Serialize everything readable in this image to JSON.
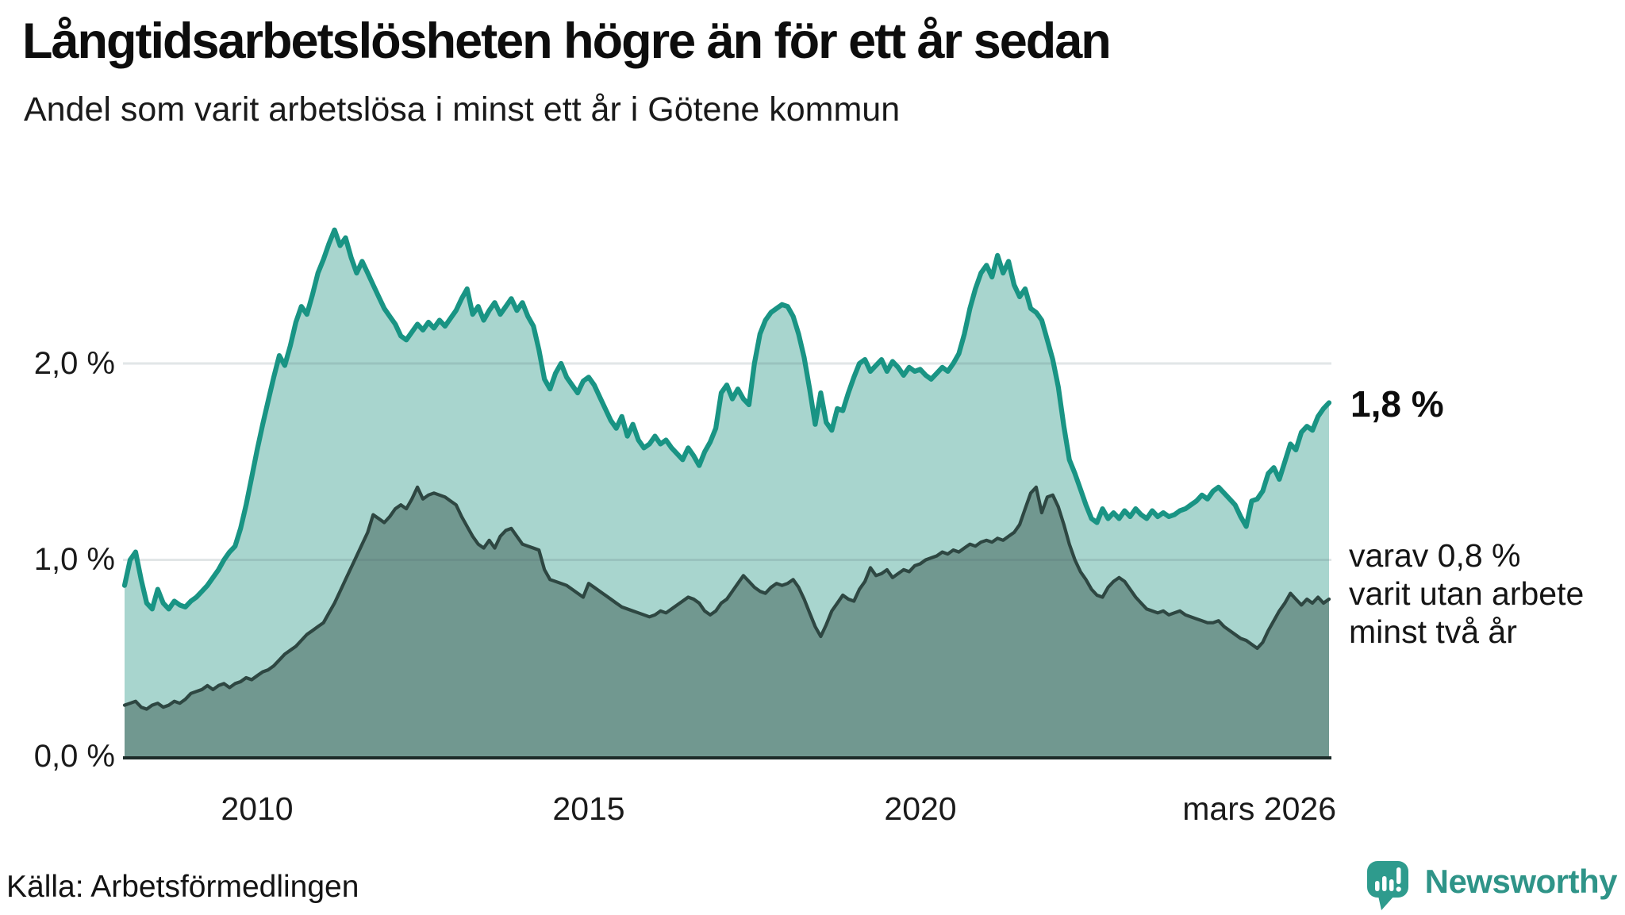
{
  "header": {
    "title": "Långtidsarbetslösheten högre än för ett år sedan",
    "subtitle": "Andel som varit arbetslösa i minst ett år i Götene kommun"
  },
  "chart_data": {
    "type": "area",
    "title": "Långtidsarbetslösheten högre än för ett år sedan",
    "subtitle": "Andel som varit arbetslösa i minst ett år i Götene kommun",
    "x_start": "2008-01",
    "x_end": "2026-03",
    "x_frequency": "monthly",
    "ylim": [
      0,
      2.8
    ],
    "grid": "horizontal",
    "legend_position": "none",
    "y_ticks": [
      {
        "label": "0,0 %",
        "value": 0
      },
      {
        "label": "1,0 %",
        "value": 1
      },
      {
        "label": "2,0 %",
        "value": 2
      }
    ],
    "x_ticks": [
      {
        "label": "2010",
        "year": 2010
      },
      {
        "label": "2015",
        "year": 2015
      },
      {
        "label": "2020",
        "year": 2020
      },
      {
        "label": "mars 2026",
        "year": 2026.17
      }
    ],
    "series": [
      {
        "name": "Andel arbetslösa minst ett år",
        "line_color": "#199484",
        "fill_color": "#a8d5ce",
        "end_value_label": "1,8 %",
        "values": [
          0.87,
          1.0,
          1.04,
          0.9,
          0.78,
          0.75,
          0.85,
          0.78,
          0.75,
          0.79,
          0.77,
          0.76,
          0.79,
          0.81,
          0.84,
          0.87,
          0.91,
          0.95,
          1.0,
          1.04,
          1.07,
          1.16,
          1.28,
          1.42,
          1.56,
          1.69,
          1.81,
          1.93,
          2.04,
          1.99,
          2.09,
          2.21,
          2.29,
          2.25,
          2.35,
          2.46,
          2.53,
          2.61,
          2.68,
          2.6,
          2.64,
          2.54,
          2.46,
          2.52,
          2.46,
          2.4,
          2.34,
          2.28,
          2.24,
          2.2,
          2.14,
          2.12,
          2.16,
          2.2,
          2.17,
          2.21,
          2.18,
          2.22,
          2.19,
          2.23,
          2.27,
          2.33,
          2.38,
          2.25,
          2.29,
          2.22,
          2.27,
          2.31,
          2.25,
          2.29,
          2.33,
          2.27,
          2.31,
          2.24,
          2.19,
          2.07,
          1.92,
          1.87,
          1.95,
          2.0,
          1.93,
          1.89,
          1.85,
          1.91,
          1.93,
          1.89,
          1.83,
          1.77,
          1.71,
          1.67,
          1.73,
          1.63,
          1.69,
          1.61,
          1.57,
          1.59,
          1.63,
          1.59,
          1.61,
          1.57,
          1.54,
          1.51,
          1.57,
          1.53,
          1.48,
          1.55,
          1.6,
          1.67,
          1.85,
          1.89,
          1.82,
          1.87,
          1.82,
          1.79,
          2.0,
          2.15,
          2.22,
          2.26,
          2.28,
          2.3,
          2.29,
          2.24,
          2.15,
          2.03,
          1.87,
          1.69,
          1.85,
          1.7,
          1.66,
          1.77,
          1.76,
          1.85,
          1.93,
          2.0,
          2.02,
          1.96,
          1.99,
          2.02,
          1.96,
          2.01,
          1.98,
          1.94,
          1.98,
          1.96,
          1.97,
          1.94,
          1.92,
          1.95,
          1.98,
          1.96,
          2.0,
          2.05,
          2.15,
          2.28,
          2.38,
          2.46,
          2.5,
          2.44,
          2.55,
          2.46,
          2.52,
          2.4,
          2.34,
          2.38,
          2.28,
          2.26,
          2.22,
          2.12,
          2.02,
          1.88,
          1.68,
          1.51,
          1.44,
          1.36,
          1.28,
          1.21,
          1.19,
          1.26,
          1.21,
          1.24,
          1.21,
          1.25,
          1.22,
          1.26,
          1.23,
          1.21,
          1.25,
          1.22,
          1.24,
          1.22,
          1.23,
          1.25,
          1.26,
          1.28,
          1.3,
          1.33,
          1.31,
          1.35,
          1.37,
          1.34,
          1.31,
          1.28,
          1.22,
          1.17,
          1.3,
          1.31,
          1.35,
          1.44,
          1.47,
          1.41,
          1.5,
          1.59,
          1.56,
          1.65,
          1.68,
          1.66,
          1.73,
          1.77,
          1.8
        ]
      },
      {
        "name": "Andel arbetslösa minst två år",
        "line_color": "#2e4742",
        "fill_color": "#719890",
        "end_value_label": "varav 0,8 % varit utan arbete minst två år",
        "values": [
          0.26,
          0.27,
          0.28,
          0.25,
          0.24,
          0.26,
          0.27,
          0.25,
          0.26,
          0.28,
          0.27,
          0.29,
          0.32,
          0.33,
          0.34,
          0.36,
          0.34,
          0.36,
          0.37,
          0.35,
          0.37,
          0.38,
          0.4,
          0.39,
          0.41,
          0.43,
          0.44,
          0.46,
          0.49,
          0.52,
          0.54,
          0.56,
          0.59,
          0.62,
          0.64,
          0.66,
          0.68,
          0.73,
          0.78,
          0.84,
          0.9,
          0.96,
          1.02,
          1.08,
          1.14,
          1.23,
          1.21,
          1.19,
          1.22,
          1.26,
          1.28,
          1.26,
          1.31,
          1.37,
          1.31,
          1.33,
          1.34,
          1.33,
          1.32,
          1.3,
          1.28,
          1.22,
          1.17,
          1.12,
          1.08,
          1.06,
          1.1,
          1.06,
          1.12,
          1.15,
          1.16,
          1.12,
          1.08,
          1.07,
          1.06,
          1.05,
          0.95,
          0.9,
          0.89,
          0.88,
          0.87,
          0.85,
          0.83,
          0.81,
          0.88,
          0.86,
          0.84,
          0.82,
          0.8,
          0.78,
          0.76,
          0.75,
          0.74,
          0.73,
          0.72,
          0.71,
          0.72,
          0.74,
          0.73,
          0.75,
          0.77,
          0.79,
          0.81,
          0.8,
          0.78,
          0.74,
          0.72,
          0.74,
          0.78,
          0.8,
          0.84,
          0.88,
          0.92,
          0.89,
          0.86,
          0.84,
          0.83,
          0.86,
          0.88,
          0.87,
          0.88,
          0.9,
          0.86,
          0.8,
          0.73,
          0.66,
          0.61,
          0.67,
          0.74,
          0.78,
          0.82,
          0.8,
          0.79,
          0.85,
          0.89,
          0.96,
          0.92,
          0.93,
          0.95,
          0.91,
          0.93,
          0.95,
          0.94,
          0.97,
          0.98,
          1.0,
          1.01,
          1.02,
          1.04,
          1.03,
          1.05,
          1.04,
          1.06,
          1.08,
          1.07,
          1.09,
          1.1,
          1.09,
          1.11,
          1.1,
          1.12,
          1.14,
          1.18,
          1.26,
          1.34,
          1.37,
          1.24,
          1.32,
          1.33,
          1.27,
          1.18,
          1.08,
          1.0,
          0.94,
          0.9,
          0.85,
          0.82,
          0.81,
          0.86,
          0.89,
          0.91,
          0.89,
          0.85,
          0.81,
          0.78,
          0.75,
          0.74,
          0.73,
          0.74,
          0.72,
          0.73,
          0.74,
          0.72,
          0.71,
          0.7,
          0.69,
          0.68,
          0.68,
          0.69,
          0.66,
          0.64,
          0.62,
          0.6,
          0.59,
          0.57,
          0.55,
          0.58,
          0.64,
          0.69,
          0.74,
          0.78,
          0.83,
          0.8,
          0.77,
          0.8,
          0.78,
          0.81,
          0.78,
          0.8
        ]
      }
    ]
  },
  "annotations": {
    "primary": "1,8 %",
    "secondary_lines": [
      "varav 0,8 %",
      "varit utan arbete",
      "minst två år"
    ]
  },
  "footer": {
    "source": "Källa: Arbetsförmedlingen",
    "brand": "Newsworthy"
  },
  "colors": {
    "accent_teal": "#199484",
    "light_fill": "#a8d5ce",
    "dark_fill": "#719890",
    "dark_stroke": "#2e4742",
    "brand_teal": "#2f9488",
    "gridline": "rgba(75,100,108,0.16)",
    "axis": "#1d2b29"
  }
}
